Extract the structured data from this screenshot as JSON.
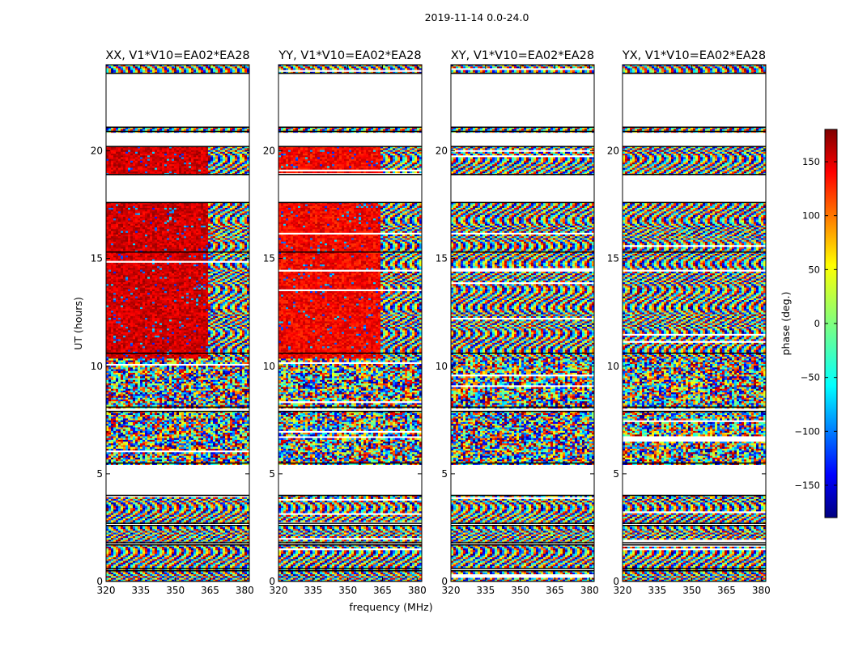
{
  "chart_data": {
    "type": "heatmap",
    "title": "2019-11-14 0.0-24.0",
    "xlabel": "frequency (MHz)",
    "ylabel": "UT (hours)",
    "xlim": [
      320,
      382
    ],
    "ylim": [
      0,
      24
    ],
    "xticks": [
      320,
      335,
      350,
      365,
      380
    ],
    "yticks": [
      0,
      5,
      10,
      15,
      20
    ],
    "panels": [
      {
        "title": "XX, V1*V10=EA02*EA28",
        "coherent_until_mhz": 364,
        "coherent_until_hour": 20.2,
        "coherent_from_hour": 10.4
      },
      {
        "title": "YY, V1*V10=EA02*EA28",
        "coherent_until_mhz": 364,
        "coherent_until_hour": 20.2,
        "coherent_from_hour": 10.4
      },
      {
        "title": "XY, V1*V10=EA02*EA28",
        "coherent_until_mhz": 320,
        "coherent_until_hour": 20.2,
        "coherent_from_hour": 10.4
      },
      {
        "title": "YX, V1*V10=EA02*EA28",
        "coherent_until_mhz": 320,
        "coherent_until_hour": 20.2,
        "coherent_from_hour": 10.4
      }
    ],
    "data_intervals_hours": [
      [
        0.0,
        0.5
      ],
      [
        0.6,
        1.7
      ],
      [
        1.8,
        2.6
      ],
      [
        2.7,
        4.0
      ],
      [
        5.5,
        7.9
      ],
      [
        8.1,
        10.6
      ],
      [
        10.6,
        15.3
      ],
      [
        15.3,
        17.6
      ],
      [
        18.9,
        20.2
      ],
      [
        20.9,
        21.1
      ],
      [
        23.6,
        24.0
      ]
    ],
    "colorbar": {
      "label": "phase (deg.)",
      "range": [
        -180,
        180
      ],
      "ticks": [
        -150,
        -100,
        -50,
        0,
        50,
        100,
        150
      ],
      "colormap": "jet"
    }
  }
}
